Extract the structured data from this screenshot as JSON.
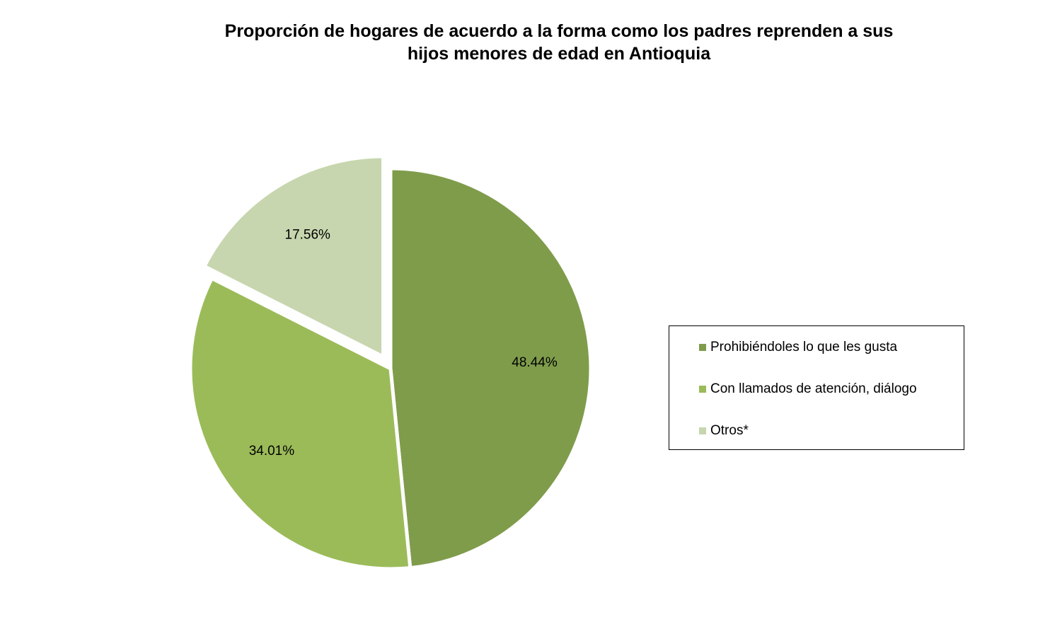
{
  "chart_data": {
    "type": "pie",
    "title_lines": [
      "Proporción de hogares de acuerdo a la forma como los padres reprenden a sus",
      "hijos menores de edad en Antioquia"
    ],
    "slices": [
      {
        "name": "Prohibiéndoles lo que les gusta",
        "value": 48.44,
        "label": "48.44%",
        "color": "#7f9c4b"
      },
      {
        "name": "Con llamados de atención, diálogo",
        "value": 34.01,
        "label": "34.01%",
        "color": "#9bbb59"
      },
      {
        "name": "Otros*",
        "value": 17.56,
        "label": "17.56%",
        "color": "#c7d6ae"
      }
    ],
    "exploded": "Otros*",
    "legend_position": "right"
  }
}
